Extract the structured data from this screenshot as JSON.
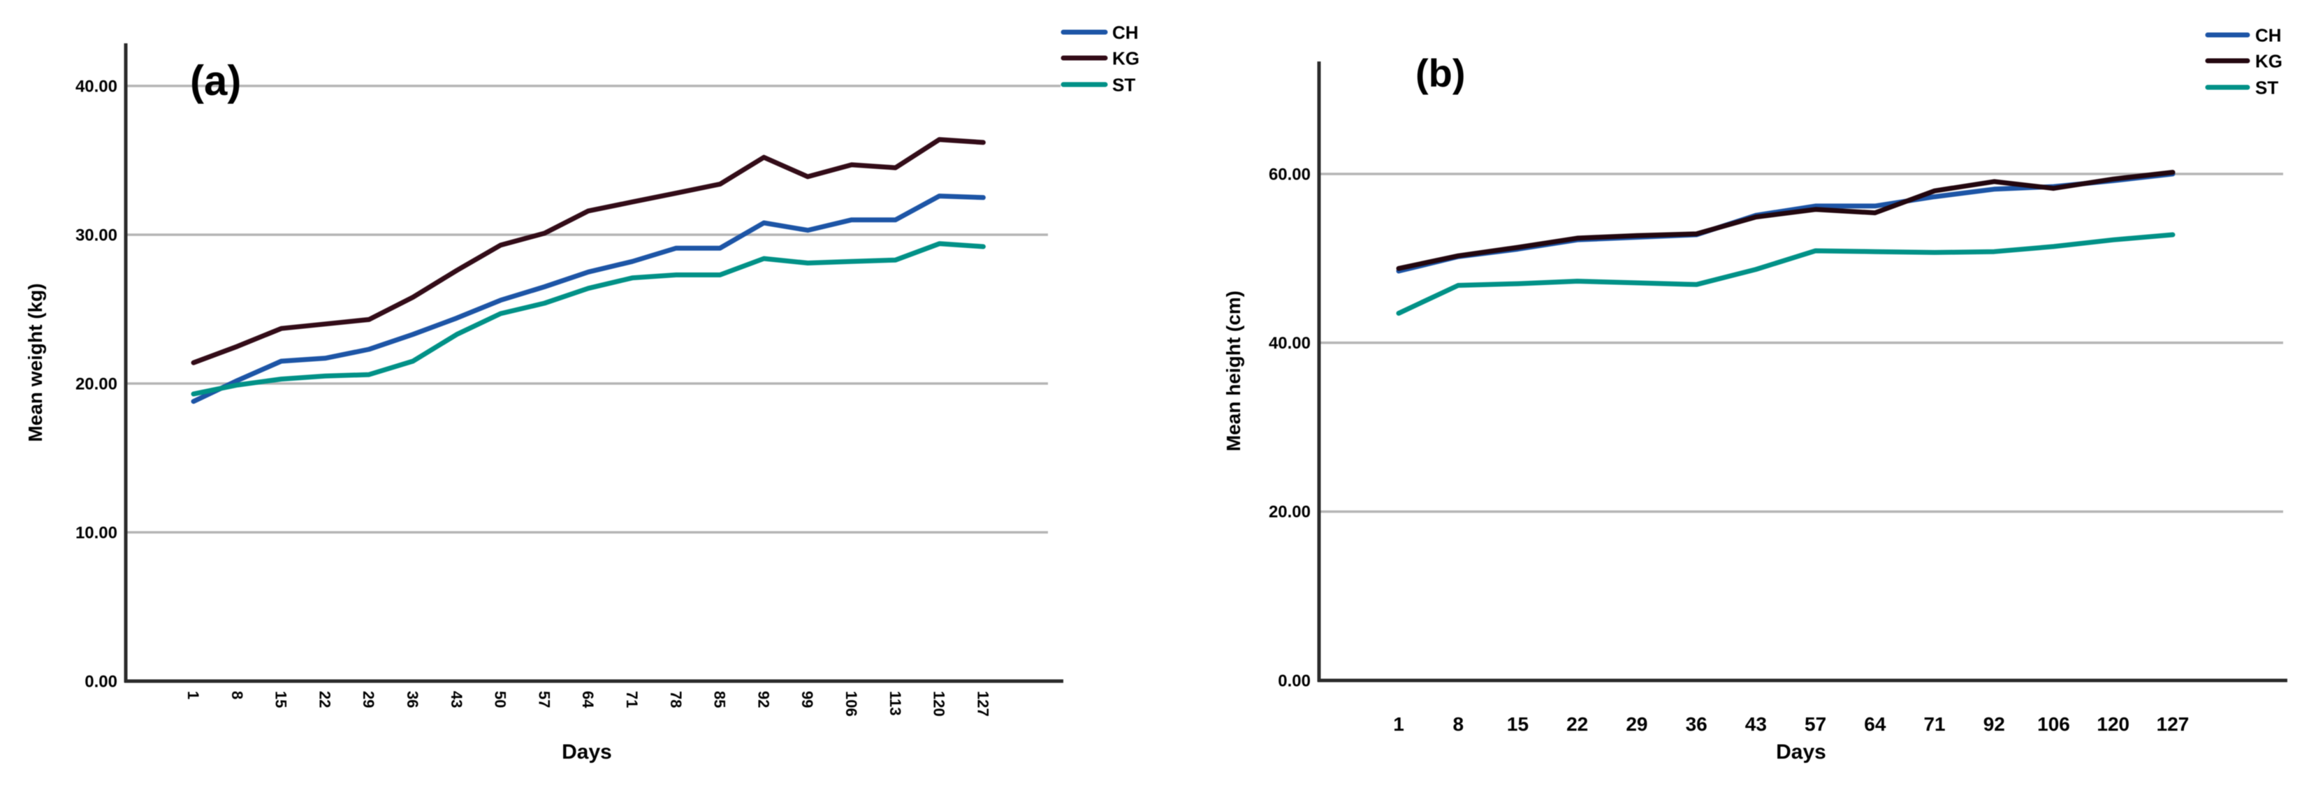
{
  "figure": {
    "background": "#ffffff",
    "grid_color": "#b5b5b5",
    "axis_color": "#2b2b2b",
    "text_color": "#000000"
  },
  "chart_data": [
    {
      "id": "a",
      "type": "line",
      "panel_label": "(a)",
      "xlabel": "Days",
      "ylabel": "Mean weight (kg)",
      "categories": [
        1,
        8,
        15,
        22,
        29,
        36,
        43,
        50,
        57,
        64,
        71,
        78,
        85,
        92,
        99,
        106,
        113,
        120,
        127
      ],
      "x_tick_rotation": 90,
      "y_ticks": [
        {
          "label": "0.00",
          "value": 0
        },
        {
          "label": "10.00",
          "value": 10
        },
        {
          "label": "20.00",
          "value": 20
        },
        {
          "label": "30.00",
          "value": 30
        },
        {
          "label": "40.00",
          "value": 40
        }
      ],
      "gridlines": [
        10,
        20,
        30,
        40
      ],
      "ylim": [
        0,
        42.8
      ],
      "legend": {
        "position": "top-right",
        "entries": [
          "CH",
          "KG",
          "ST"
        ]
      },
      "series": [
        {
          "name": "CH",
          "color": "#1d55a6",
          "values": [
            18.8,
            20.2,
            21.5,
            21.7,
            22.3,
            23.3,
            24.4,
            25.6,
            26.5,
            27.5,
            28.2,
            29.1,
            29.1,
            30.8,
            30.3,
            31.0,
            31.0,
            32.6,
            32.5
          ]
        },
        {
          "name": "KG",
          "color": "#330c18",
          "values": [
            21.4,
            22.5,
            23.7,
            24.0,
            24.3,
            25.8,
            27.6,
            29.3,
            30.1,
            31.6,
            32.2,
            32.8,
            33.4,
            35.2,
            33.9,
            34.7,
            34.5,
            36.4,
            36.2
          ]
        },
        {
          "name": "ST",
          "color": "#009187",
          "values": [
            19.3,
            19.9,
            20.3,
            20.5,
            20.6,
            21.5,
            23.3,
            24.7,
            25.4,
            26.4,
            27.1,
            27.3,
            27.3,
            28.4,
            28.1,
            28.2,
            28.3,
            29.4,
            29.2
          ]
        }
      ]
    },
    {
      "id": "b",
      "type": "line",
      "panel_label": "(b)",
      "xlabel": "Days",
      "ylabel": "Mean height (cm)",
      "categories": [
        1,
        8,
        15,
        22,
        29,
        36,
        43,
        57,
        64,
        71,
        92,
        106,
        120,
        127
      ],
      "x_tick_rotation": 0,
      "y_ticks": [
        {
          "label": "0.00",
          "value": 0
        },
        {
          "label": "20.00",
          "value": 20
        },
        {
          "label": "40.00",
          "value": 40
        },
        {
          "label": "60.00",
          "value": 60
        }
      ],
      "gridlines": [
        20,
        40,
        60
      ],
      "ylim": [
        0,
        73.3
      ],
      "legend": {
        "position": "top-right",
        "entries": [
          "CH",
          "KG",
          "ST"
        ]
      },
      "series": [
        {
          "name": "CH",
          "color": "#1d55a6",
          "values": [
            48.5,
            50.2,
            51.1,
            52.2,
            52.5,
            52.8,
            55.1,
            56.2,
            56.2,
            57.3,
            58.2,
            58.5,
            59.2,
            60.0
          ]
        },
        {
          "name": "KG",
          "color": "#23070f",
          "values": [
            48.8,
            50.3,
            51.3,
            52.4,
            52.7,
            52.9,
            54.9,
            55.8,
            55.4,
            58.0,
            59.1,
            58.3,
            59.4,
            60.2
          ]
        },
        {
          "name": "ST",
          "color": "#009187",
          "values": [
            43.5,
            46.8,
            47.0,
            47.3,
            47.1,
            46.9,
            48.7,
            50.9,
            50.8,
            50.7,
            50.8,
            51.4,
            52.2,
            52.8
          ]
        }
      ]
    }
  ]
}
